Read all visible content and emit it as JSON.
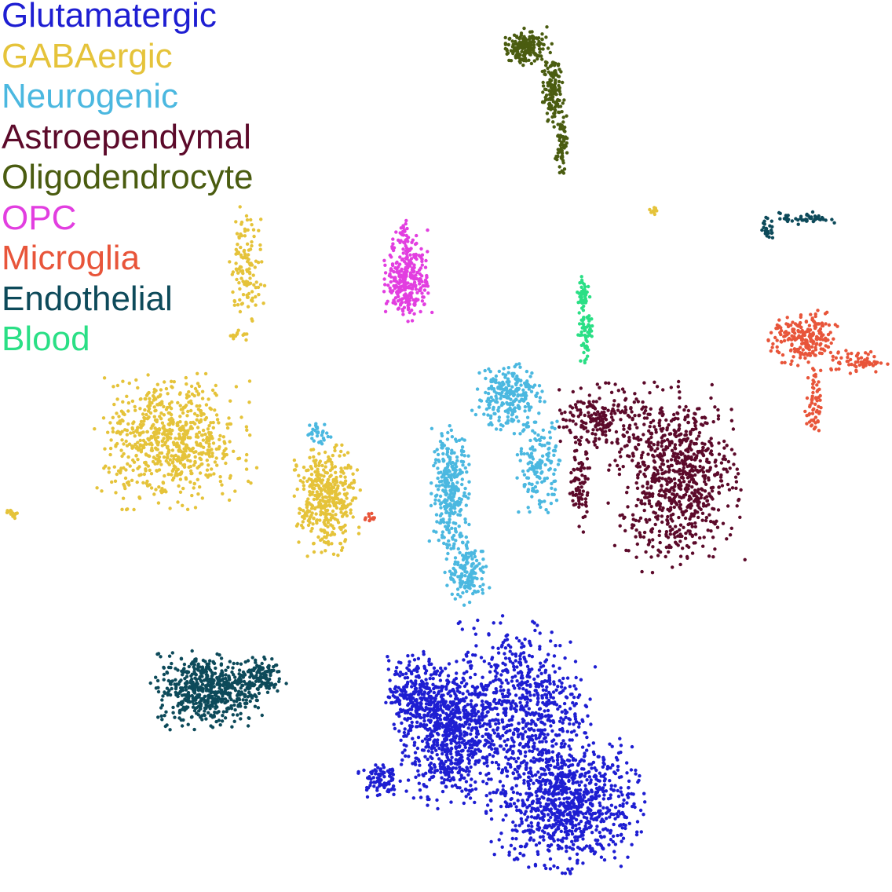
{
  "chart_data": {
    "type": "scatter",
    "title": "",
    "xlabel": "",
    "ylabel": "",
    "axes_visible": false,
    "grid": false,
    "legend_placement": "top-left",
    "xlim": [
      0,
      100
    ],
    "ylim": [
      0,
      100
    ],
    "series": [
      {
        "name": "Glutamatergic",
        "color": "#1e1ed2",
        "clusters": [
          {
            "cx": 50.5,
            "cy": 17.5,
            "rx": 5.0,
            "ry": 7.0,
            "n": 700
          },
          {
            "cx": 63.5,
            "cy": 9.5,
            "rx": 7.5,
            "ry": 6.5,
            "n": 900
          },
          {
            "cx": 58.5,
            "cy": 20.5,
            "rx": 7.0,
            "ry": 9.0,
            "n": 700
          },
          {
            "cx": 46.5,
            "cy": 22.0,
            "rx": 3.0,
            "ry": 4.0,
            "n": 250
          },
          {
            "cx": 42.5,
            "cy": 12.5,
            "rx": 2.0,
            "ry": 2.0,
            "n": 80
          }
        ]
      },
      {
        "name": "GABAergic",
        "color": "#e5c33a",
        "clusters": [
          {
            "cx": 19.0,
            "cy": 50.5,
            "rx": 7.5,
            "ry": 6.5,
            "n": 700
          },
          {
            "cx": 36.5,
            "cy": 44.0,
            "rx": 3.2,
            "ry": 5.5,
            "n": 400
          },
          {
            "cx": 27.5,
            "cy": 70.5,
            "rx": 1.8,
            "ry": 5.5,
            "n": 120
          },
          {
            "cx": 26.5,
            "cy": 62.5,
            "rx": 1.0,
            "ry": 0.8,
            "n": 15
          },
          {
            "cx": 73.5,
            "cy": 76.6,
            "rx": 0.6,
            "ry": 0.5,
            "n": 15
          },
          {
            "cx": 1.0,
            "cy": 42.5,
            "rx": 0.6,
            "ry": 0.6,
            "n": 12
          }
        ]
      },
      {
        "name": "Neurogenic",
        "color": "#4bb8e0",
        "clusters": [
          {
            "cx": 57.0,
            "cy": 55.5,
            "rx": 3.5,
            "ry": 3.5,
            "n": 250
          },
          {
            "cx": 50.5,
            "cy": 45.0,
            "rx": 2.0,
            "ry": 6.5,
            "n": 300
          },
          {
            "cx": 52.5,
            "cy": 35.5,
            "rx": 2.2,
            "ry": 3.0,
            "n": 150
          },
          {
            "cx": 60.5,
            "cy": 47.5,
            "rx": 2.2,
            "ry": 5.0,
            "n": 150
          },
          {
            "cx": 35.5,
            "cy": 51.5,
            "rx": 1.3,
            "ry": 1.2,
            "n": 30
          }
        ]
      },
      {
        "name": "Astroependymal",
        "color": "#5c0a2a",
        "clusters": [
          {
            "cx": 76.0,
            "cy": 46.5,
            "rx": 6.5,
            "ry": 9.0,
            "n": 800
          },
          {
            "cx": 67.5,
            "cy": 53.0,
            "rx": 4.0,
            "ry": 3.5,
            "n": 200
          },
          {
            "cx": 65.0,
            "cy": 45.5,
            "rx": 1.2,
            "ry": 4.5,
            "n": 80
          }
        ]
      },
      {
        "name": "Oligodendrocyte",
        "color": "#4a5c10",
        "clusters": [
          {
            "cx": 59.0,
            "cy": 95.0,
            "rx": 2.5,
            "ry": 1.8,
            "n": 180
          },
          {
            "cx": 62.0,
            "cy": 90.0,
            "rx": 1.2,
            "ry": 3.5,
            "n": 130
          },
          {
            "cx": 63.0,
            "cy": 84.0,
            "rx": 0.6,
            "ry": 3.0,
            "n": 60
          }
        ]
      },
      {
        "name": "OPC",
        "color": "#e23ee0",
        "clusters": [
          {
            "cx": 45.7,
            "cy": 69.0,
            "rx": 2.3,
            "ry": 4.5,
            "n": 300
          },
          {
            "cx": 45.2,
            "cy": 74.0,
            "rx": 0.5,
            "ry": 1.4,
            "n": 20
          }
        ]
      },
      {
        "name": "Microglia",
        "color": "#e8553a",
        "clusters": [
          {
            "cx": 90.5,
            "cy": 62.0,
            "rx": 3.5,
            "ry": 2.8,
            "n": 220
          },
          {
            "cx": 91.5,
            "cy": 54.5,
            "rx": 0.8,
            "ry": 4.0,
            "n": 60
          },
          {
            "cx": 96.5,
            "cy": 59.5,
            "rx": 3.0,
            "ry": 1.2,
            "n": 60
          },
          {
            "cx": 41.5,
            "cy": 42.0,
            "rx": 0.8,
            "ry": 0.6,
            "n": 10
          }
        ]
      },
      {
        "name": "Endothelial",
        "color": "#0d4a5a",
        "clusters": [
          {
            "cx": 23.0,
            "cy": 22.5,
            "rx": 5.5,
            "ry": 3.8,
            "n": 550
          },
          {
            "cx": 29.0,
            "cy": 24.0,
            "rx": 2.5,
            "ry": 2.0,
            "n": 120
          },
          {
            "cx": 90.5,
            "cy": 75.7,
            "rx": 2.8,
            "ry": 0.6,
            "n": 50
          },
          {
            "cx": 86.2,
            "cy": 74.5,
            "rx": 0.8,
            "ry": 1.2,
            "n": 25
          }
        ]
      },
      {
        "name": "Blood",
        "color": "#2adf85",
        "clusters": [
          {
            "cx": 65.8,
            "cy": 63.5,
            "rx": 0.8,
            "ry": 4.0,
            "n": 70
          },
          {
            "cx": 65.5,
            "cy": 67.5,
            "rx": 0.7,
            "ry": 1.5,
            "n": 30
          }
        ]
      }
    ]
  }
}
